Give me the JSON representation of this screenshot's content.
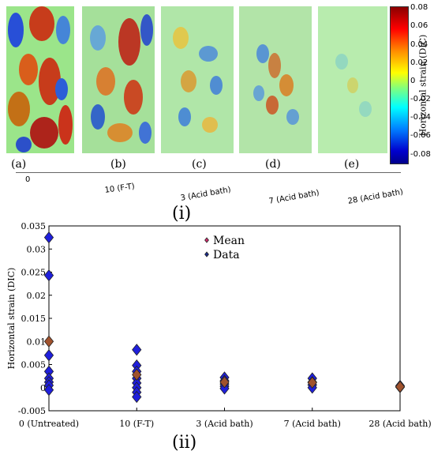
{
  "images": {
    "panels": [
      {
        "label": "(a)",
        "tick": "0"
      },
      {
        "label": "(b)",
        "tick": "10 (F-T)"
      },
      {
        "label": "(c)",
        "tick": "3 (Acid bath)"
      },
      {
        "label": "(d)",
        "tick": "7 (Acid bath)"
      },
      {
        "label": "(e)",
        "tick": "28 (Acid bath)"
      }
    ],
    "colorbar": {
      "label": "Horizontal strain (DIC)",
      "ticks": [
        "0.08",
        "0.06",
        "0.04",
        "0.02",
        "0",
        "-0.02",
        "-0.04",
        "-0.06",
        "-0.08"
      ]
    },
    "caption": "(i)"
  },
  "chart_data": {
    "type": "scatter",
    "caption": "(ii)",
    "ylabel": "Horizontal strain (DIC)",
    "xlabel": "",
    "categories": [
      "0 (Untreated)",
      "10 (F-T)",
      "3 (Acid bath)",
      "7 (Acid bath)",
      "28 (Acid bath)"
    ],
    "ylim": [
      -0.005,
      0.035
    ],
    "yticks": [
      "-0.005",
      "0",
      "0.005",
      "0.01",
      "0.015",
      "0.02",
      "0.025",
      "0.03",
      "0.035"
    ],
    "series": [
      {
        "name": "Data",
        "color": "#1f1fdc",
        "values": [
          [
            0.0325,
            0.0243,
            0.007,
            0.0035,
            0.002,
            0.0012,
            0.0005,
            -0.0005
          ],
          [
            0.0082,
            0.0048,
            0.0035,
            0.002,
            0.001,
            0.0,
            -0.001,
            -0.002
          ],
          [
            0.0022,
            0.0015,
            0.0008,
            0.0003,
            -0.0002
          ],
          [
            0.002,
            0.0012,
            0.0006,
            0.0
          ],
          [
            0.0004,
            0.0001
          ]
        ]
      },
      {
        "name": "Mean",
        "color": "#a0522d",
        "values": [
          0.01,
          0.0028,
          0.0012,
          0.0011,
          0.0002
        ]
      }
    ],
    "legend": "top-center"
  }
}
